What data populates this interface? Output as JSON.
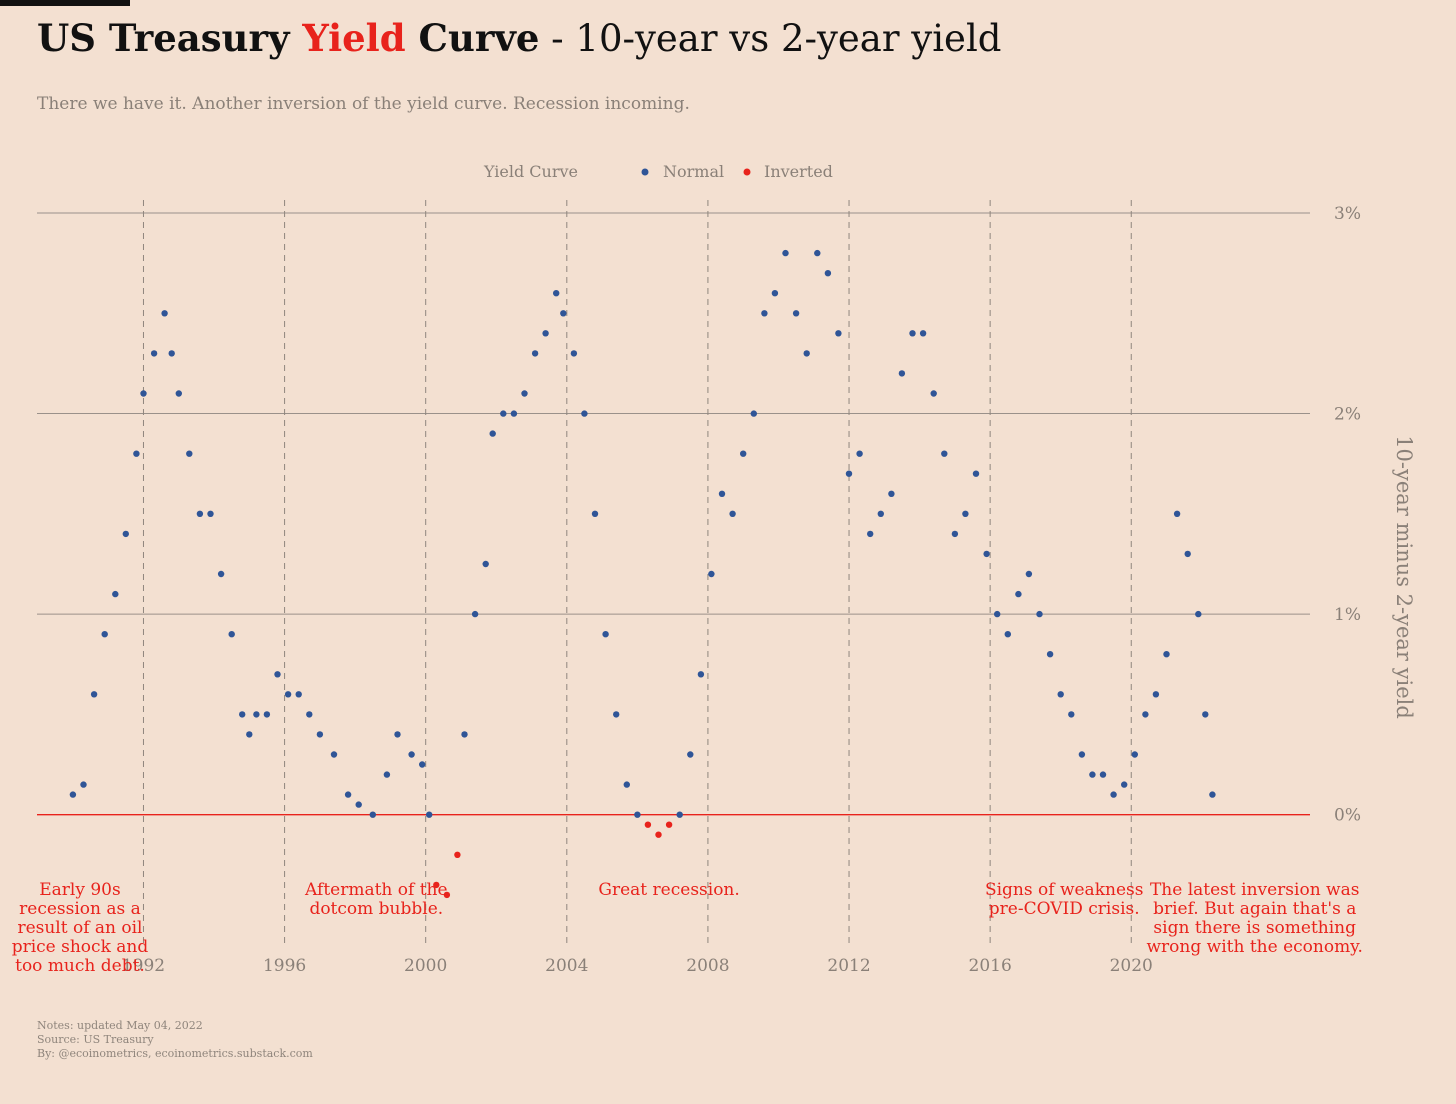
{
  "header": {
    "title_part1": "US Treasury ",
    "title_highlight": "Yield",
    "title_part2": " Curve",
    "title_part3": " - 10-year vs 2-year yield",
    "subtitle": "There we have it. Another inversion of the yield curve. Recession incoming."
  },
  "legend": {
    "title": "Yield Curve",
    "items": [
      {
        "label": "Normal",
        "color": "#2f5597"
      },
      {
        "label": "Inverted",
        "color": "#e8231c"
      }
    ]
  },
  "chart_data": {
    "type": "scatter",
    "title": "US Treasury Yield Curve - 10-year vs 2-year yield",
    "ylabel": "10-year minus 2-year yield",
    "xlabel": "",
    "xlim": [
      1988.5,
      2024.5
    ],
    "ylim": [
      -0.6,
      3.0
    ],
    "x_ticks": [
      1992,
      1996,
      2000,
      2004,
      2008,
      2012,
      2016,
      2020
    ],
    "y_ticks": [
      {
        "value": 0,
        "label": "0%"
      },
      {
        "value": 1,
        "label": "1%"
      },
      {
        "value": 2,
        "label": "2%"
      },
      {
        "value": 3,
        "label": "3%"
      }
    ],
    "grid": "horizontal",
    "vertical_guides": [
      1992,
      1996,
      2000,
      2004,
      2008,
      2012,
      2016,
      2020
    ],
    "legend_position": "top-center",
    "colors": {
      "normal": "#2f5597",
      "inverted": "#e8231c"
    },
    "series": [
      {
        "name": "Yield Curve",
        "x": [
          1990.0,
          1990.3,
          1990.6,
          1990.9,
          1991.2,
          1991.5,
          1991.8,
          1992.0,
          1992.3,
          1992.6,
          1992.8,
          1993.0,
          1993.3,
          1993.6,
          1993.9,
          1994.2,
          1994.5,
          1994.8,
          1995.0,
          1995.2,
          1995.5,
          1995.8,
          1996.1,
          1996.4,
          1996.7,
          1997.0,
          1997.4,
          1997.8,
          1998.1,
          1998.5,
          1998.9,
          1999.2,
          1999.6,
          1999.9,
          2000.1,
          2000.3,
          2000.6,
          2000.9,
          2001.1,
          2001.4,
          2001.7,
          2001.9,
          2002.2,
          2002.5,
          2002.8,
          2003.1,
          2003.4,
          2003.7,
          2003.9,
          2004.2,
          2004.5,
          2004.8,
          2005.1,
          2005.4,
          2005.7,
          2006.0,
          2006.3,
          2006.6,
          2006.9,
          2007.2,
          2007.5,
          2007.8,
          2008.1,
          2008.4,
          2008.7,
          2009.0,
          2009.3,
          2009.6,
          2009.9,
          2010.2,
          2010.5,
          2010.8,
          2011.1,
          2011.4,
          2011.7,
          2012.0,
          2012.3,
          2012.6,
          2012.9,
          2013.2,
          2013.5,
          2013.8,
          2014.1,
          2014.4,
          2014.7,
          2015.0,
          2015.3,
          2015.6,
          2015.9,
          2016.2,
          2016.5,
          2016.8,
          2017.1,
          2017.4,
          2017.7,
          2018.0,
          2018.3,
          2018.6,
          2018.9,
          2019.2,
          2019.5,
          2019.8,
          2020.1,
          2020.4,
          2020.7,
          2021.0,
          2021.3,
          2021.6,
          2021.9,
          2022.1,
          2022.3
        ],
        "y": [
          0.1,
          0.15,
          0.6,
          0.9,
          1.1,
          1.4,
          1.8,
          2.1,
          2.3,
          2.5,
          2.3,
          2.1,
          1.8,
          1.5,
          1.5,
          1.2,
          0.9,
          0.5,
          0.4,
          0.5,
          0.5,
          0.7,
          0.6,
          0.6,
          0.5,
          0.4,
          0.3,
          0.1,
          0.05,
          0.0,
          0.2,
          0.4,
          0.3,
          0.25,
          0.0,
          -0.35,
          -0.4,
          -0.2,
          0.4,
          1.0,
          1.25,
          1.9,
          2.0,
          2.0,
          2.1,
          2.3,
          2.4,
          2.6,
          2.5,
          2.3,
          2.0,
          1.5,
          0.9,
          0.5,
          0.15,
          0.0,
          -0.05,
          -0.1,
          -0.05,
          0.0,
          0.3,
          0.7,
          1.2,
          1.6,
          1.5,
          1.8,
          2.0,
          2.5,
          2.6,
          2.8,
          2.5,
          2.3,
          2.8,
          2.7,
          2.4,
          1.7,
          1.8,
          1.4,
          1.5,
          1.6,
          2.2,
          2.4,
          2.4,
          2.1,
          1.8,
          1.4,
          1.5,
          1.7,
          1.3,
          1.0,
          0.9,
          1.1,
          1.2,
          1.0,
          0.8,
          0.6,
          0.5,
          0.3,
          0.2,
          0.2,
          0.1,
          0.15,
          0.3,
          0.5,
          0.6,
          0.8,
          1.5,
          1.3,
          1.0,
          0.5,
          0.1
        ]
      }
    ],
    "annotations": [
      {
        "x": 1990.2,
        "y": -0.4,
        "text": "Early 90s recession as a result of an oil price shock and too much debt."
      },
      {
        "x": 1998.6,
        "y": -0.4,
        "text": "Aftermath of the dotcom bubble."
      },
      {
        "x": 2006.9,
        "y": -0.4,
        "text": "Great recession."
      },
      {
        "x": 2018.1,
        "y": -0.4,
        "text": "Signs of weakness pre-COVID crisis."
      },
      {
        "x": 2023.5,
        "y": -0.4,
        "text": "The latest inversion was brief. But again that's a sign there is something wrong with the economy."
      }
    ]
  },
  "notes": {
    "line1": "Notes: updated May 04, 2022",
    "line2": "Source: US Treasury",
    "line3": "By: @ecoinometrics, ecoinometrics.substack.com"
  }
}
